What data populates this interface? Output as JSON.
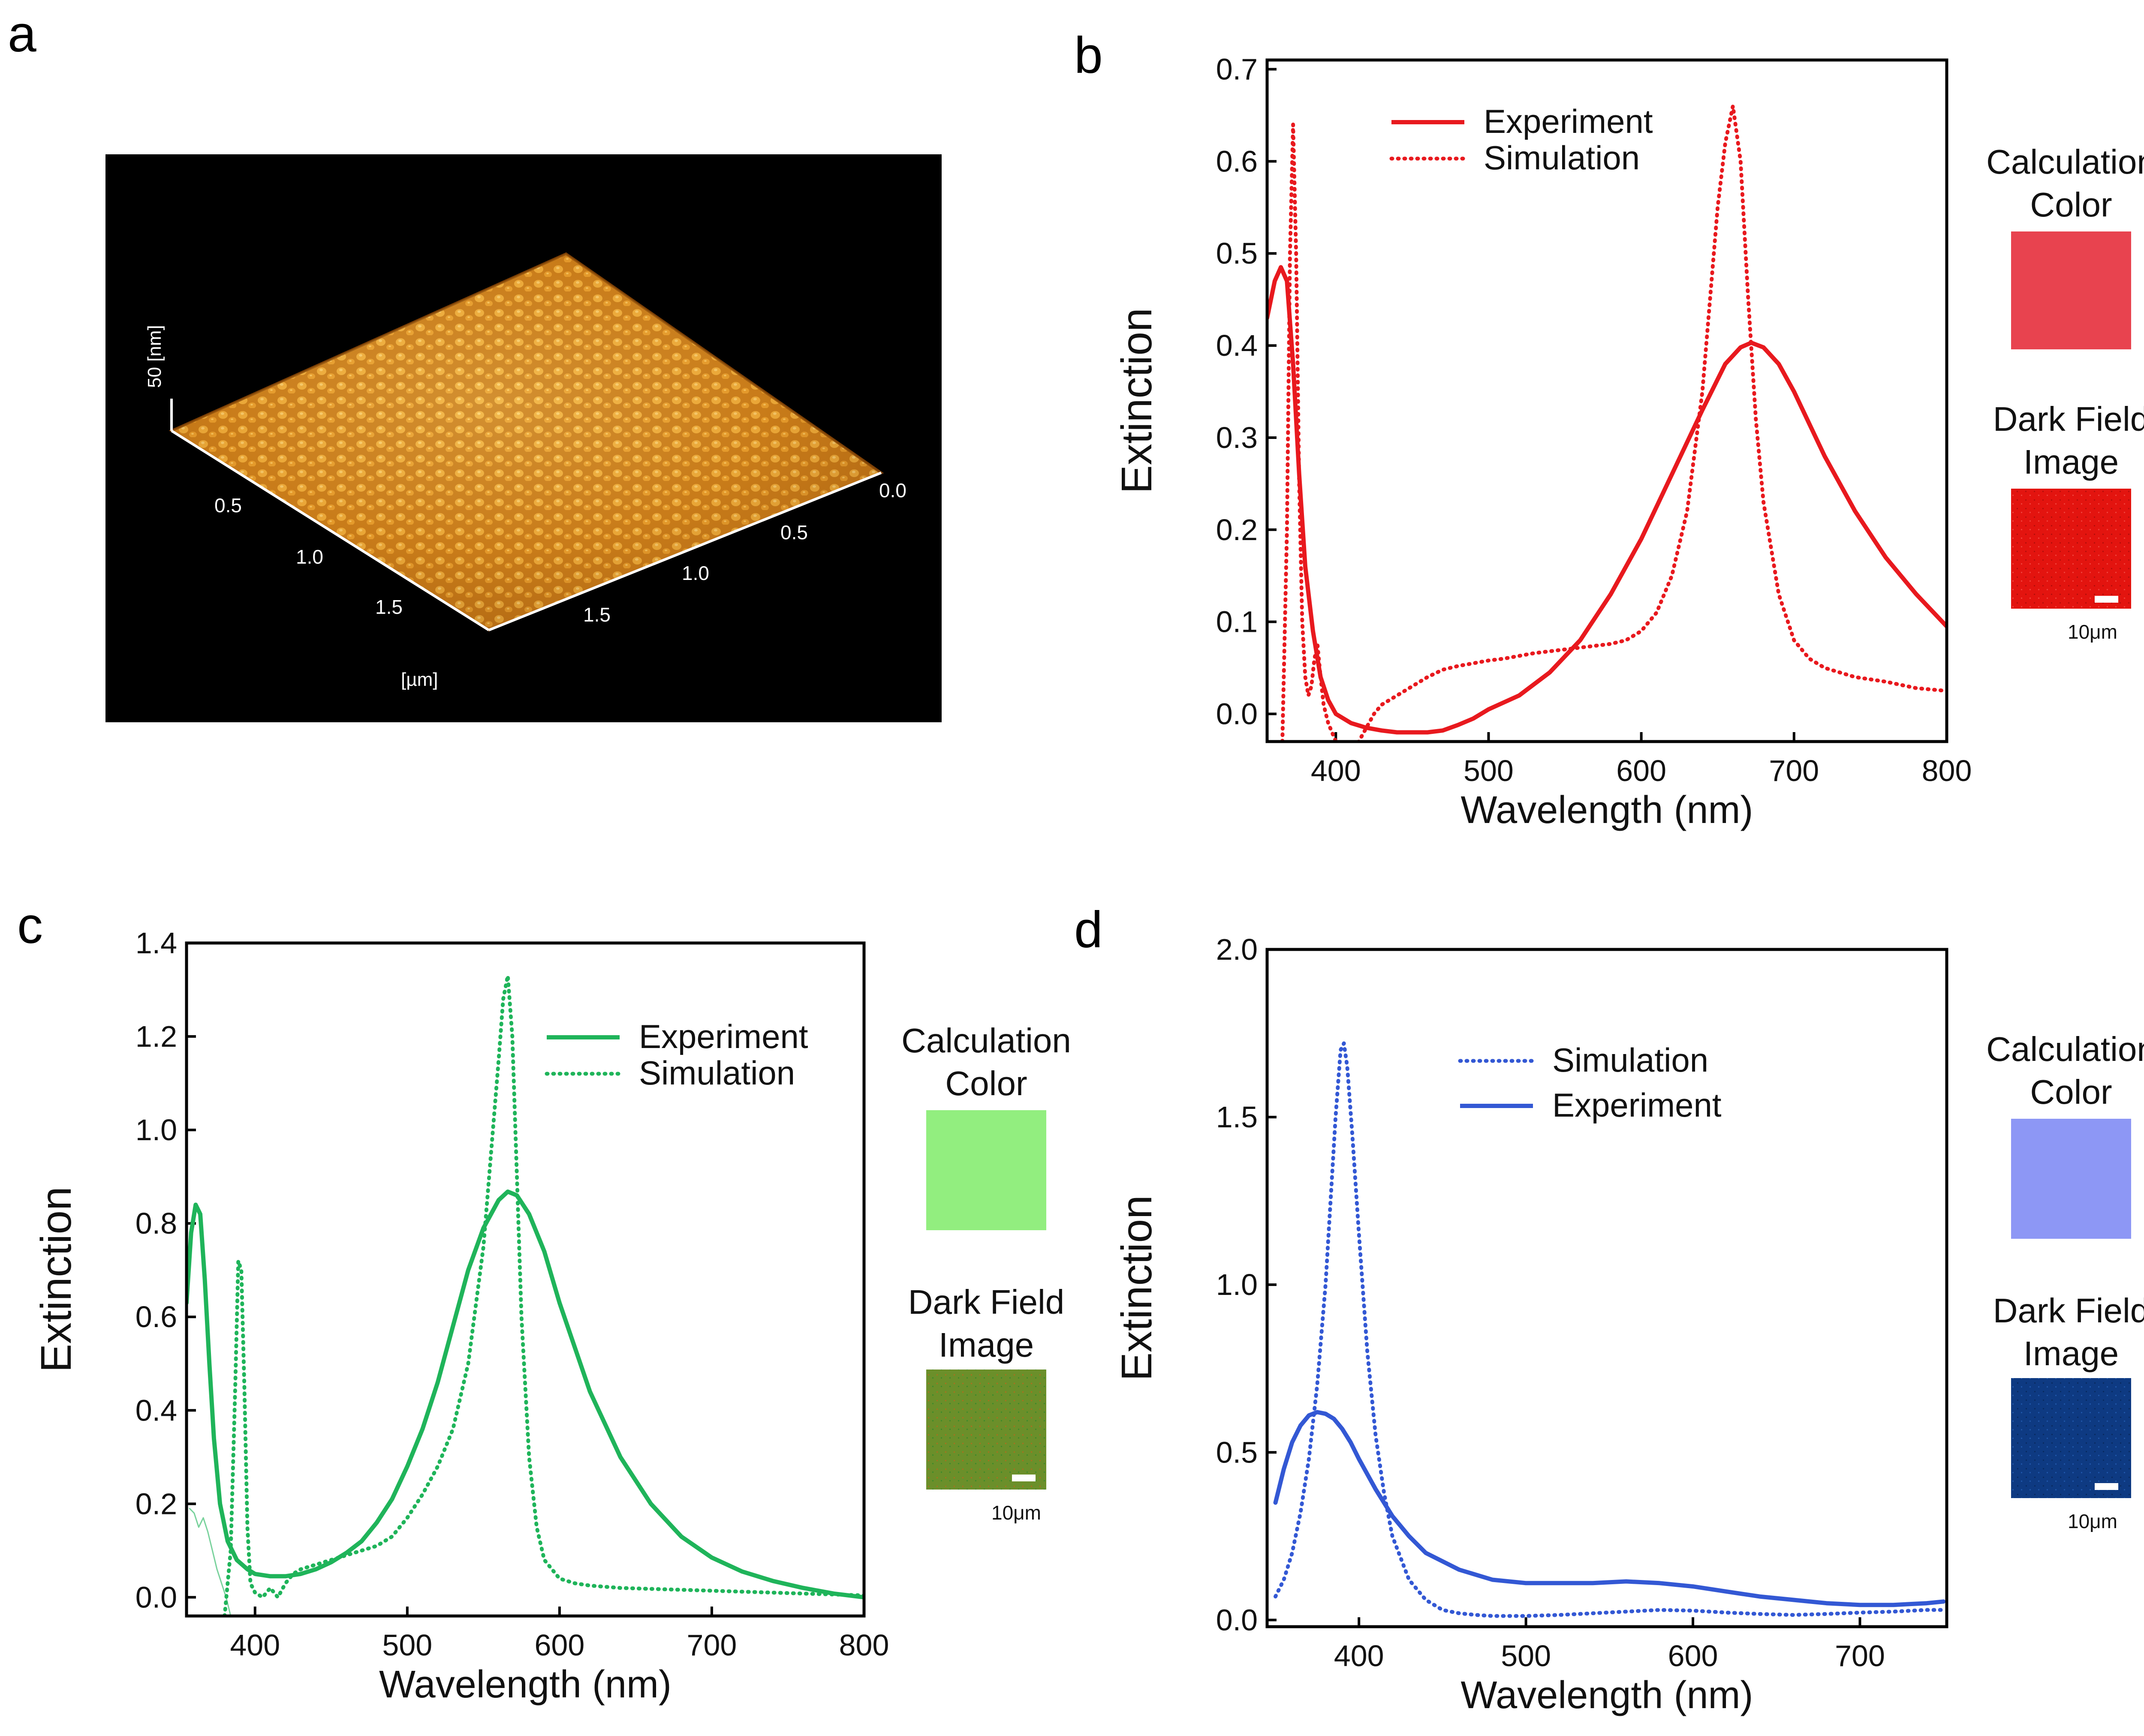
{
  "panels": {
    "a": {
      "letter": "a",
      "image_description_free": true,
      "axis_labels": {
        "z_unit": "50 [nm]",
        "xy_unit": "[µm]"
      },
      "left_axis_ticks": [
        "0.5",
        "1.0",
        "1.5"
      ],
      "right_axis_ticks": [
        "0.0",
        "0.5",
        "1.0",
        "1.5"
      ],
      "colors": {
        "background": "#000000",
        "surface_light": "#f0b84a",
        "surface_dark": "#8a4a06",
        "axis": "#ffffff"
      }
    },
    "b": {
      "letter": "b"
    },
    "c": {
      "letter": "c"
    },
    "d": {
      "letter": "d"
    }
  },
  "swatches": {
    "b": {
      "calc_label_1": "Calculation",
      "calc_label_2": "Color",
      "calc_color": "#e8434f",
      "df_label_1": "Dark Field",
      "df_label_2": "Image",
      "df_color": "#e3140f",
      "scale": "10μm"
    },
    "c": {
      "calc_label_1": "Calculation",
      "calc_label_2": "Color",
      "calc_color": "#92ee7f",
      "df_label_1": "Dark Field",
      "df_label_2": "Image",
      "df_color": "#6b8f2a",
      "scale": "10μm"
    },
    "d": {
      "calc_label_1": "Calculation",
      "calc_label_2": "Color",
      "calc_color": "#8d97f5",
      "df_label_1": "Dark Field",
      "df_label_2": "Image",
      "df_color": "#0e3a82",
      "scale": "10μm"
    }
  },
  "chart_data": [
    {
      "panel": "b",
      "type": "line",
      "xlabel": "Wavelength (nm)",
      "ylabel": "Extinction",
      "xlim": [
        355,
        800
      ],
      "ylim": [
        -0.03,
        0.71
      ],
      "xticks": [
        400,
        500,
        600,
        700,
        800
      ],
      "yticks": [
        0.0,
        0.1,
        0.2,
        0.3,
        0.4,
        0.5,
        0.6,
        0.7
      ],
      "ytick_labels": [
        "0.0",
        "0.1",
        "0.2",
        "0.3",
        "0.4",
        "0.5",
        "0.6",
        "0.7"
      ],
      "legend_position": "top-left",
      "color": "#e8191e",
      "series": [
        {
          "name": "Experiment",
          "style": "solid",
          "x": [
            355,
            360,
            364,
            368,
            372,
            376,
            380,
            385,
            390,
            395,
            400,
            410,
            420,
            430,
            440,
            450,
            460,
            470,
            480,
            490,
            500,
            520,
            540,
            560,
            580,
            600,
            620,
            640,
            655,
            665,
            672,
            680,
            690,
            700,
            720,
            740,
            760,
            780,
            800
          ],
          "y": [
            0.43,
            0.47,
            0.485,
            0.47,
            0.38,
            0.26,
            0.16,
            0.09,
            0.04,
            0.015,
            0.0,
            -0.01,
            -0.015,
            -0.018,
            -0.02,
            -0.02,
            -0.02,
            -0.018,
            -0.012,
            -0.005,
            0.005,
            0.02,
            0.045,
            0.08,
            0.13,
            0.19,
            0.26,
            0.33,
            0.38,
            0.398,
            0.403,
            0.398,
            0.38,
            0.35,
            0.28,
            0.22,
            0.17,
            0.13,
            0.095
          ]
        },
        {
          "name": "Simulation",
          "style": "dotted",
          "x": [
            365,
            368,
            370,
            372,
            374,
            376,
            378,
            380,
            382,
            384,
            386,
            388,
            390,
            392,
            395,
            400,
            405,
            410,
            415,
            420,
            425,
            430,
            440,
            450,
            460,
            470,
            480,
            490,
            500,
            510,
            520,
            530,
            540,
            550,
            560,
            570,
            580,
            590,
            600,
            610,
            620,
            630,
            640,
            645,
            650,
            655,
            660,
            665,
            670,
            675,
            680,
            690,
            700,
            710,
            720,
            740,
            760,
            780,
            800
          ],
          "y": [
            -0.03,
            0.2,
            0.5,
            0.64,
            0.5,
            0.25,
            0.1,
            0.04,
            0.02,
            0.03,
            0.06,
            0.075,
            0.04,
            0.01,
            -0.01,
            -0.03,
            -0.05,
            -0.04,
            -0.03,
            -0.015,
            0.0,
            0.01,
            0.02,
            0.03,
            0.04,
            0.048,
            0.052,
            0.055,
            0.058,
            0.06,
            0.063,
            0.066,
            0.068,
            0.07,
            0.072,
            0.074,
            0.076,
            0.08,
            0.09,
            0.11,
            0.15,
            0.22,
            0.35,
            0.45,
            0.55,
            0.62,
            0.66,
            0.6,
            0.45,
            0.32,
            0.23,
            0.13,
            0.08,
            0.06,
            0.05,
            0.04,
            0.035,
            0.028,
            0.025
          ]
        }
      ]
    },
    {
      "panel": "c",
      "type": "line",
      "xlabel": "Wavelength (nm)",
      "ylabel": "Extinction",
      "xlim": [
        355,
        800
      ],
      "ylim": [
        -0.04,
        1.4
      ],
      "xticks": [
        400,
        500,
        600,
        700,
        800
      ],
      "yticks": [
        0.0,
        0.2,
        0.4,
        0.6,
        0.8,
        1.0,
        1.2,
        1.4
      ],
      "ytick_labels": [
        "0.0",
        "0.2",
        "0.4",
        "0.6",
        "0.8",
        "1.0",
        "1.2",
        "1.4"
      ],
      "legend_position": "top-right",
      "color": "#1fb45a",
      "series": [
        {
          "name": "Experiment",
          "style": "solid",
          "x": [
            355,
            358,
            361,
            364,
            367,
            370,
            373,
            377,
            382,
            388,
            395,
            400,
            410,
            420,
            430,
            440,
            450,
            460,
            470,
            480,
            490,
            500,
            510,
            520,
            530,
            540,
            550,
            560,
            566,
            572,
            580,
            590,
            600,
            620,
            640,
            660,
            680,
            700,
            720,
            740,
            760,
            780,
            800
          ],
          "y": [
            0.63,
            0.78,
            0.84,
            0.82,
            0.68,
            0.5,
            0.34,
            0.2,
            0.12,
            0.08,
            0.06,
            0.05,
            0.045,
            0.045,
            0.05,
            0.06,
            0.075,
            0.095,
            0.12,
            0.16,
            0.21,
            0.28,
            0.36,
            0.46,
            0.58,
            0.7,
            0.79,
            0.85,
            0.868,
            0.86,
            0.82,
            0.74,
            0.63,
            0.44,
            0.3,
            0.2,
            0.13,
            0.085,
            0.055,
            0.035,
            0.02,
            0.008,
            0.0
          ]
        },
        {
          "name": "Simulation",
          "style": "dotted",
          "x": [
            380,
            384,
            387,
            389,
            391,
            393,
            395,
            397,
            400,
            405,
            410,
            415,
            420,
            425,
            430,
            440,
            450,
            460,
            470,
            480,
            490,
            500,
            510,
            520,
            530,
            540,
            550,
            555,
            560,
            563,
            566,
            569,
            572,
            575,
            580,
            585,
            590,
            600,
            610,
            620,
            640,
            660,
            680,
            700,
            720,
            740,
            760,
            780,
            800
          ],
          "y": [
            -0.04,
            0.1,
            0.45,
            0.72,
            0.7,
            0.45,
            0.15,
            0.03,
            0.01,
            0.0,
            0.02,
            0.0,
            0.03,
            0.05,
            0.06,
            0.07,
            0.08,
            0.09,
            0.1,
            0.11,
            0.13,
            0.17,
            0.22,
            0.28,
            0.36,
            0.5,
            0.75,
            0.95,
            1.15,
            1.28,
            1.33,
            1.2,
            0.9,
            0.6,
            0.3,
            0.15,
            0.08,
            0.04,
            0.03,
            0.025,
            0.02,
            0.018,
            0.016,
            0.014,
            0.012,
            0.01,
            0.008,
            0.006,
            0.004
          ]
        },
        {
          "name": "",
          "style": "thin",
          "x": [
            357,
            360,
            363,
            366,
            369,
            372,
            375,
            378,
            381,
            384
          ],
          "y": [
            0.19,
            0.18,
            0.15,
            0.17,
            0.14,
            0.1,
            0.06,
            0.03,
            0.0,
            -0.04
          ]
        }
      ]
    },
    {
      "panel": "d",
      "type": "line",
      "xlabel": "Wavelength (nm)",
      "ylabel": "Extinction",
      "xlim": [
        345,
        752
      ],
      "ylim": [
        -0.02,
        2.0
      ],
      "xticks": [
        400,
        500,
        600,
        700
      ],
      "yticks": [
        0.0,
        0.5,
        1.0,
        1.5,
        2.0
      ],
      "ytick_labels": [
        "0.0",
        "0.5",
        "1.0",
        "1.5",
        "2.0"
      ],
      "legend_position": "top-left",
      "color": "#3358d4",
      "series": [
        {
          "name": "Simulation",
          "style": "dotted",
          "x": [
            350,
            355,
            360,
            365,
            370,
            375,
            380,
            383,
            386,
            389,
            391,
            393,
            396,
            400,
            405,
            410,
            415,
            420,
            430,
            440,
            450,
            460,
            470,
            480,
            500,
            520,
            540,
            560,
            580,
            600,
            620,
            640,
            660,
            680,
            700,
            720,
            740,
            750
          ],
          "y": [
            0.07,
            0.12,
            0.2,
            0.32,
            0.48,
            0.7,
            1.0,
            1.25,
            1.5,
            1.7,
            1.72,
            1.65,
            1.45,
            1.15,
            0.8,
            0.55,
            0.38,
            0.25,
            0.12,
            0.06,
            0.03,
            0.02,
            0.015,
            0.012,
            0.012,
            0.015,
            0.02,
            0.025,
            0.03,
            0.028,
            0.022,
            0.018,
            0.015,
            0.018,
            0.022,
            0.025,
            0.03,
            0.03
          ]
        },
        {
          "name": "Experiment",
          "style": "solid",
          "x": [
            350,
            355,
            360,
            365,
            370,
            375,
            380,
            385,
            390,
            395,
            400,
            410,
            420,
            430,
            440,
            460,
            480,
            500,
            520,
            540,
            560,
            580,
            600,
            620,
            640,
            660,
            680,
            700,
            720,
            740,
            750
          ],
          "y": [
            0.35,
            0.45,
            0.53,
            0.58,
            0.61,
            0.62,
            0.615,
            0.6,
            0.57,
            0.53,
            0.48,
            0.39,
            0.31,
            0.25,
            0.2,
            0.15,
            0.12,
            0.11,
            0.11,
            0.11,
            0.115,
            0.11,
            0.1,
            0.085,
            0.07,
            0.06,
            0.05,
            0.045,
            0.045,
            0.05,
            0.055
          ]
        }
      ]
    }
  ]
}
